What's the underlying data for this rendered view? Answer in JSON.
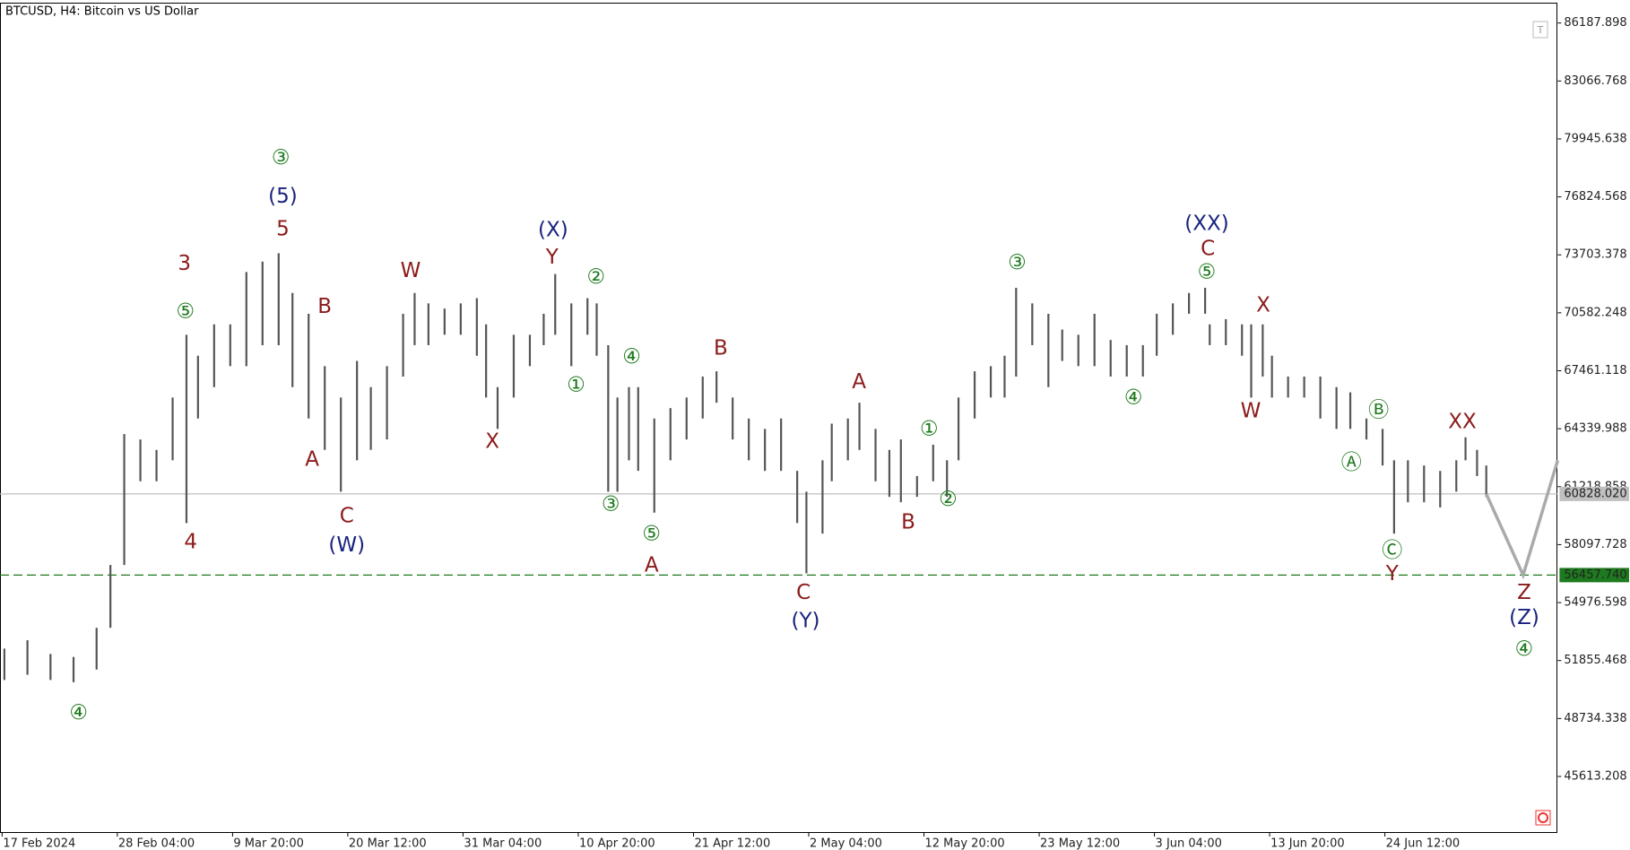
{
  "chart_data": {
    "type": "ohlc",
    "title": "BTCUSD, H4:  Bitcoin vs US Dollar",
    "ylim": [
      42571,
      87258
    ],
    "xlim": [
      0,
      675
    ],
    "yticks": [
      86187.898,
      83066.768,
      79945.638,
      76824.568,
      73703.378,
      70582.248,
      67461.118,
      64339.988,
      61218.858,
      58097.728,
      54976.598,
      51855.468,
      48734.338,
      45613.208
    ],
    "xticks": [
      {
        "value": 0,
        "label": "17 Feb 2024"
      },
      {
        "value": 50,
        "label": "28 Feb 04:00"
      },
      {
        "value": 100,
        "label": "9 Mar 20:00"
      },
      {
        "value": 150,
        "label": "20 Mar 12:00"
      },
      {
        "value": 200,
        "label": "31 Mar 04:00"
      },
      {
        "value": 250,
        "label": "10 Apr 20:00"
      },
      {
        "value": 300,
        "label": "21 Apr 12:00"
      },
      {
        "value": 350,
        "label": "2 May 04:00"
      },
      {
        "value": 400,
        "label": "12 May 20:00"
      },
      {
        "value": 450,
        "label": "23 May 12:00"
      },
      {
        "value": 500,
        "label": "3 Jun 04:00"
      },
      {
        "value": 550,
        "label": "13 Jun 20:00"
      },
      {
        "value": 600,
        "label": "24 Jun 12:00"
      }
    ],
    "series": [
      {
        "name": "BTCUSD",
        "color": "#555555",
        "x": [
          1,
          11,
          21,
          31,
          41,
          47,
          53,
          60,
          67,
          74,
          80,
          85,
          92,
          99,
          106,
          113,
          120,
          126,
          133,
          140,
          147,
          154,
          160,
          167,
          174,
          179,
          185,
          192,
          199,
          206,
          210,
          215,
          222,
          229,
          235,
          240,
          247,
          254,
          258,
          263,
          267,
          272,
          276,
          283,
          290,
          297,
          304,
          310,
          317,
          324,
          331,
          338,
          345,
          349,
          356,
          360,
          367,
          372,
          379,
          385,
          390,
          397,
          404,
          410,
          415,
          422,
          429,
          435,
          440,
          447,
          454,
          460,
          467,
          474,
          481,
          488,
          495,
          501,
          508,
          515,
          522,
          524,
          531,
          538,
          542,
          547,
          551,
          558,
          565,
          572,
          579,
          585,
          592,
          599,
          604,
          610,
          617,
          624,
          631,
          635,
          640,
          644
        ],
        "high": [
          52500,
          52950,
          52210,
          52050,
          53620,
          57000,
          64050,
          63760,
          63200,
          66020,
          69400,
          68270,
          69960,
          69960,
          72780,
          73340,
          73790,
          71650,
          70530,
          67710,
          66020,
          67990,
          66580,
          67710,
          70530,
          71650,
          71090,
          70810,
          71090,
          71370,
          69960,
          66580,
          69400,
          69400,
          70530,
          72670,
          71090,
          71370,
          71090,
          68840,
          66020,
          66580,
          66580,
          64890,
          65450,
          66020,
          67150,
          67430,
          66020,
          64890,
          64330,
          64890,
          62070,
          60950,
          62640,
          64610,
          64890,
          65740,
          64330,
          63200,
          63760,
          61790,
          63480,
          62640,
          66020,
          67430,
          67710,
          68270,
          71930,
          71090,
          70530,
          69680,
          69400,
          70530,
          69120,
          68840,
          68840,
          70530,
          71090,
          71650,
          71930,
          69960,
          70240,
          69960,
          69960,
          69960,
          68270,
          67150,
          67150,
          67150,
          66580,
          66300,
          64890,
          64330,
          62640,
          62640,
          62360,
          62070,
          62640,
          63880,
          63200,
          62360
        ],
        "low": [
          50810,
          51090,
          50810,
          50690,
          51370,
          53620,
          57000,
          61510,
          61510,
          62640,
          59260,
          64890,
          66580,
          67710,
          67710,
          68840,
          68840,
          66580,
          64890,
          63200,
          60950,
          62640,
          63200,
          63760,
          67150,
          68840,
          68840,
          69400,
          69400,
          68270,
          66020,
          64330,
          66020,
          67710,
          68840,
          69400,
          67710,
          69400,
          68270,
          60950,
          60950,
          62640,
          62070,
          59820,
          62640,
          63760,
          64890,
          65740,
          63760,
          62640,
          62070,
          62070,
          59260,
          56550,
          58690,
          61510,
          62640,
          63200,
          61510,
          60670,
          60380,
          60670,
          61510,
          60670,
          62640,
          64890,
          66020,
          66020,
          67150,
          68840,
          66580,
          67990,
          67710,
          67710,
          67150,
          67150,
          67150,
          68270,
          69400,
          70530,
          70530,
          68840,
          68840,
          68270,
          66020,
          67150,
          66020,
          66020,
          66020,
          64890,
          64330,
          64330,
          63760,
          62360,
          58690,
          60380,
          60380,
          60100,
          60950,
          62640,
          61790,
          60670
        ]
      }
    ],
    "projection": {
      "color": "#aaaaaa",
      "x": [
        644,
        660,
        675
      ],
      "values": [
        60830,
        56457.74,
        62640
      ]
    },
    "levels": [
      {
        "value": 60828.02,
        "label": "60828.020",
        "color": "#c0c0c0"
      },
      {
        "value": 56457.74,
        "label": "56457.740",
        "color": "#1e7a1e"
      }
    ],
    "annotations": [
      {
        "text": "④",
        "color": "#1e7a1e"
      },
      {
        "text": "③",
        "color": "#1e7a1e"
      },
      {
        "text": "(5)",
        "color": "#1a237e"
      },
      {
        "text": "5",
        "color": "#8b1a1a"
      },
      {
        "text": "3",
        "color": "#8b1a1a"
      },
      {
        "text": "⑤",
        "color": "#1e7a1e"
      },
      {
        "text": "4",
        "color": "#8b1a1a"
      },
      {
        "text": "B",
        "color": "#8b1a1a"
      },
      {
        "text": "A",
        "color": "#8b1a1a"
      },
      {
        "text": "C",
        "color": "#8b1a1a"
      },
      {
        "text": "(W)",
        "color": "#1a237e"
      },
      {
        "text": "W",
        "color": "#8b1a1a"
      },
      {
        "text": "X",
        "color": "#8b1a1a"
      },
      {
        "text": "(X)",
        "color": "#1a237e"
      },
      {
        "text": "Y",
        "color": "#8b1a1a"
      },
      {
        "text": "②",
        "color": "#1e7a1e"
      },
      {
        "text": "①",
        "color": "#1e7a1e"
      },
      {
        "text": "④",
        "color": "#1e7a1e"
      },
      {
        "text": "③",
        "color": "#1e7a1e"
      },
      {
        "text": "⑤",
        "color": "#1e7a1e"
      },
      {
        "text": "A",
        "color": "#8b1a1a"
      },
      {
        "text": "B",
        "color": "#8b1a1a"
      },
      {
        "text": "A",
        "color": "#8b1a1a"
      },
      {
        "text": "C",
        "color": "#8b1a1a"
      },
      {
        "text": "(Y)",
        "color": "#1a237e"
      },
      {
        "text": "①",
        "color": "#1e7a1e"
      },
      {
        "text": "②",
        "color": "#1e7a1e"
      },
      {
        "text": "B",
        "color": "#8b1a1a"
      },
      {
        "text": "③",
        "color": "#1e7a1e"
      },
      {
        "text": "④",
        "color": "#1e7a1e"
      },
      {
        "text": "(XX)",
        "color": "#1a237e"
      },
      {
        "text": "C",
        "color": "#8b1a1a"
      },
      {
        "text": "⑤",
        "color": "#1e7a1e"
      },
      {
        "text": "X",
        "color": "#8b1a1a"
      },
      {
        "text": "W",
        "color": "#8b1a1a"
      },
      {
        "text": "Ⓑ",
        "color": "#1e7a1e"
      },
      {
        "text": "Ⓐ",
        "color": "#1e7a1e"
      },
      {
        "text": "Ⓒ",
        "color": "#1e7a1e"
      },
      {
        "text": "Y",
        "color": "#8b1a1a"
      },
      {
        "text": "XX",
        "color": "#8b1a1a"
      },
      {
        "text": "Z",
        "color": "#8b1a1a"
      },
      {
        "text": "(Z)",
        "color": "#1a237e"
      },
      {
        "text": "④",
        "color": "#1e7a1e"
      }
    ]
  }
}
